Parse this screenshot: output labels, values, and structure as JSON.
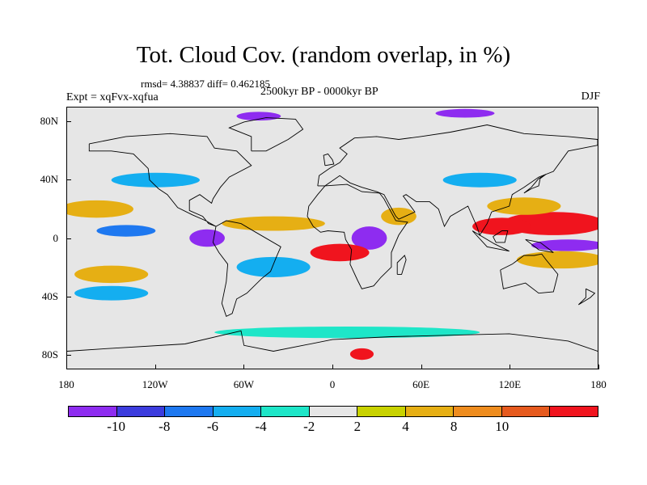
{
  "title": "Tot. Cloud Cov. (random overlap, in %)",
  "rmsd_line": "rmsd= 4.38837 diff= 0.462185",
  "expt_line": "Expt = xqFvx-xqfua",
  "period_line": "2500kyr BP - 0000kyr BP",
  "season": "DJF",
  "lat_ticks": [
    {
      "label": "80N",
      "lat": 80
    },
    {
      "label": "40N",
      "lat": 40
    },
    {
      "label": "0",
      "lat": 0
    },
    {
      "label": "40S",
      "lat": -40
    },
    {
      "label": "80S",
      "lat": -80
    }
  ],
  "lon_ticks": [
    {
      "label": "180",
      "lon": -180
    },
    {
      "label": "120W",
      "lon": -120
    },
    {
      "label": "60W",
      "lon": -60
    },
    {
      "label": "0",
      "lon": 0
    },
    {
      "label": "60E",
      "lon": 60
    },
    {
      "label": "120E",
      "lon": 120
    },
    {
      "label": "180",
      "lon": 180
    }
  ],
  "colorbar": {
    "colors": [
      "#8e2cf0",
      "#3c3cde",
      "#1e78f0",
      "#14aef0",
      "#1ee6c8",
      "#e6e6e6",
      "#c8d200",
      "#e6af14",
      "#ee8c1e",
      "#e65a1e",
      "#f0141e"
    ],
    "labels": [
      "-10",
      "-8",
      "-6",
      "-4",
      "-2",
      "2",
      "4",
      "8",
      "10"
    ]
  },
  "map": {
    "lat_range": [
      -90,
      90
    ],
    "lon_range": [
      -180,
      180
    ],
    "background_color": "#e6e6e6",
    "coastline_color": "#000000",
    "anomaly_regions": [
      {
        "lon": 150,
        "lat": 10,
        "rx": 35,
        "ry": 8,
        "level": 10
      },
      {
        "lon": 115,
        "lat": 8,
        "rx": 20,
        "ry": 6,
        "level": 10
      },
      {
        "lon": 130,
        "lat": 22,
        "rx": 25,
        "ry": 6,
        "level": 8
      },
      {
        "lon": 160,
        "lat": -5,
        "rx": 25,
        "ry": 4,
        "level": -10
      },
      {
        "lon": 155,
        "lat": -15,
        "rx": 30,
        "ry": 6,
        "level": 8
      },
      {
        "lon": 25,
        "lat": 0,
        "rx": 12,
        "ry": 8,
        "level": -10
      },
      {
        "lon": 5,
        "lat": -10,
        "rx": 20,
        "ry": 6,
        "level": 10
      },
      {
        "lon": 45,
        "lat": 15,
        "rx": 12,
        "ry": 6,
        "level": 8
      },
      {
        "lon": -85,
        "lat": 0,
        "rx": 12,
        "ry": 6,
        "level": -10
      },
      {
        "lon": -160,
        "lat": 20,
        "rx": 25,
        "ry": 6,
        "level": 8
      },
      {
        "lon": -140,
        "lat": 5,
        "rx": 20,
        "ry": 4,
        "level": -6
      },
      {
        "lon": -150,
        "lat": -25,
        "rx": 25,
        "ry": 6,
        "level": 8
      },
      {
        "lon": -150,
        "lat": -38,
        "rx": 25,
        "ry": 5,
        "level": -4
      },
      {
        "lon": -40,
        "lat": 10,
        "rx": 35,
        "ry": 5,
        "level": 8
      },
      {
        "lon": -40,
        "lat": -20,
        "rx": 25,
        "ry": 7,
        "level": -4
      },
      {
        "lon": 100,
        "lat": 40,
        "rx": 25,
        "ry": 5,
        "level": -4
      },
      {
        "lon": -120,
        "lat": 40,
        "rx": 30,
        "ry": 5,
        "level": -4
      },
      {
        "lon": 10,
        "lat": -65,
        "rx": 90,
        "ry": 4,
        "level": -2
      },
      {
        "lon": 20,
        "lat": -80,
        "rx": 8,
        "ry": 4,
        "level": 10
      },
      {
        "lon": -50,
        "lat": 84,
        "rx": 15,
        "ry": 3,
        "level": -10
      },
      {
        "lon": 90,
        "lat": 86,
        "rx": 20,
        "ry": 3,
        "level": -10
      }
    ]
  }
}
